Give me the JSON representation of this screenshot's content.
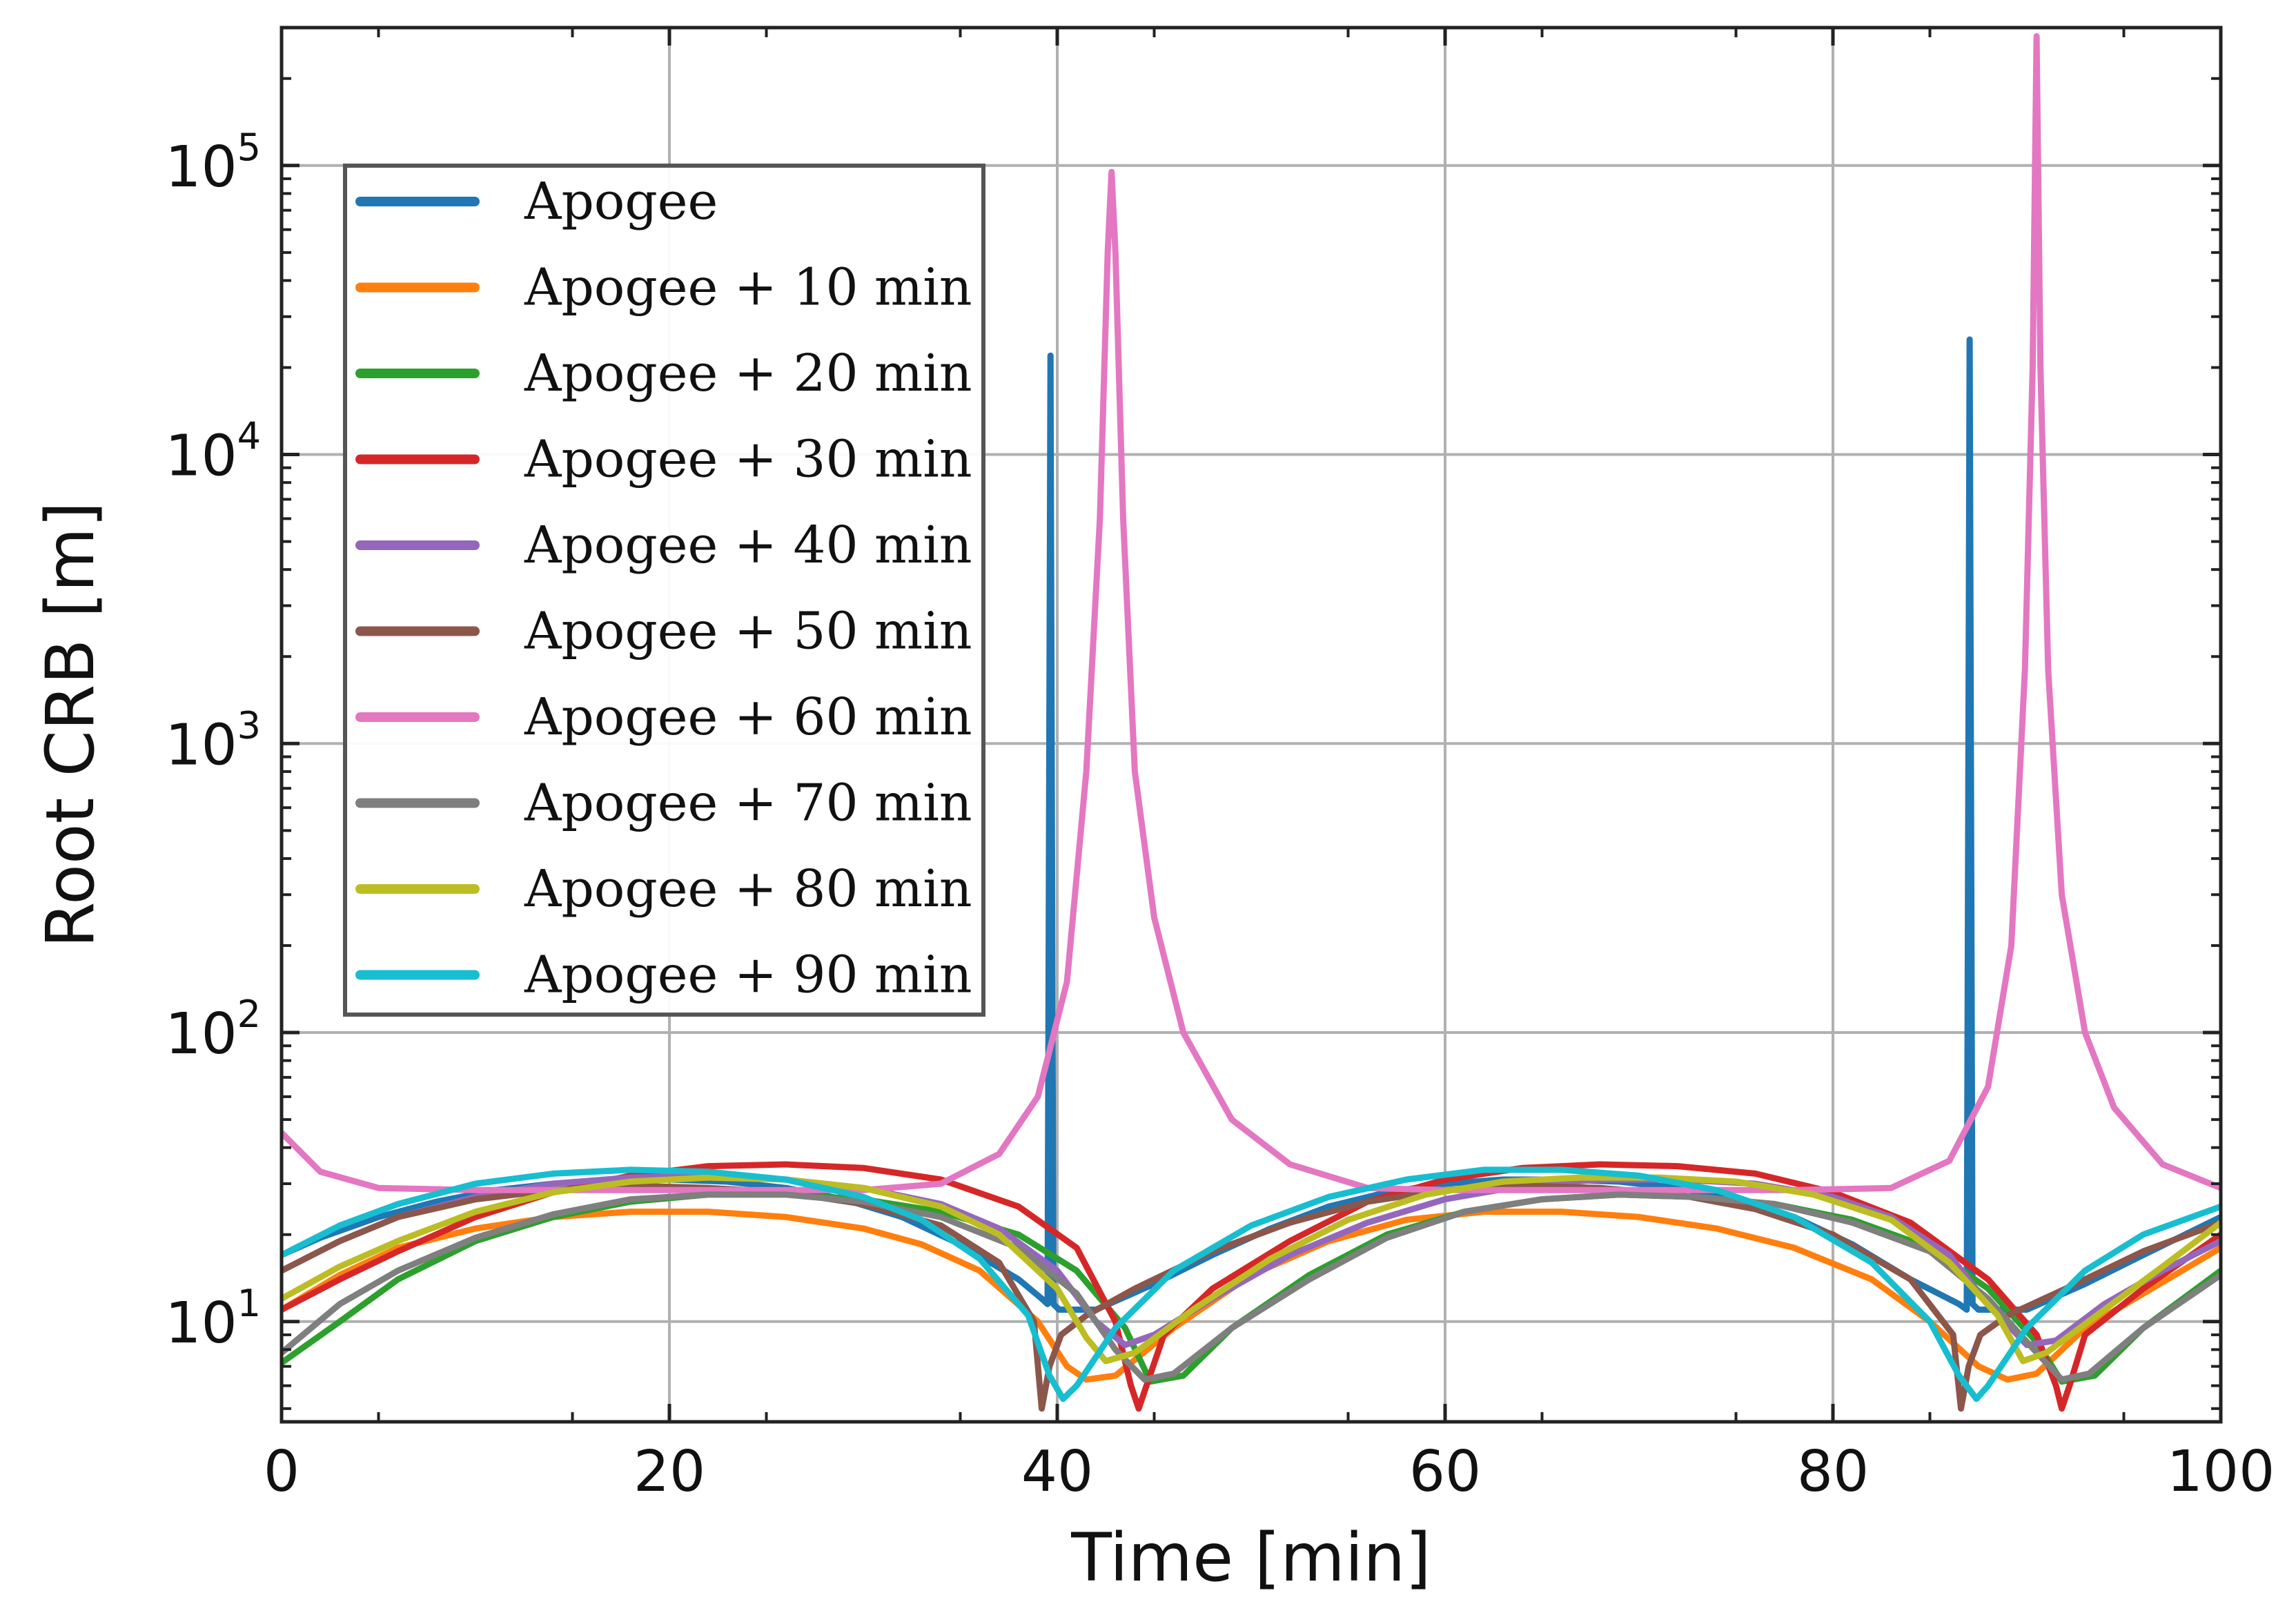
{
  "chart_data": {
    "type": "line",
    "title": "",
    "xlabel": "Time [min]",
    "ylabel": "Root CRB [m]",
    "xlim": [
      0,
      100
    ],
    "ylim": [
      4.5,
      300000
    ],
    "yscale": "log",
    "grid": true,
    "legend_position": "upper-left",
    "x_ticks": [
      0,
      20,
      40,
      60,
      80,
      100
    ],
    "y_ticks": [
      {
        "value": 10,
        "base": "10",
        "exp": "1"
      },
      {
        "value": 100,
        "base": "10",
        "exp": "2"
      },
      {
        "value": 1000,
        "base": "10",
        "exp": "3"
      },
      {
        "value": 10000,
        "base": "10",
        "exp": "4"
      },
      {
        "value": 100000,
        "base": "10",
        "exp": "5"
      }
    ],
    "series": [
      {
        "name": "Apogee",
        "color": "#1f77b4",
        "x": [
          0,
          2,
          5,
          8,
          11,
          14,
          17,
          20,
          23,
          26,
          29,
          32,
          35,
          38,
          39.2,
          39.5,
          39.65,
          39.8,
          40.1,
          42,
          45,
          48,
          51,
          54,
          57,
          60,
          63,
          66,
          69,
          72,
          75,
          78,
          81,
          84,
          86.5,
          86.9,
          87.05,
          87.2,
          87.5,
          90,
          93,
          96,
          100
        ],
        "y": [
          17,
          19.5,
          23,
          26,
          28.5,
          30,
          30.8,
          31,
          30.5,
          29,
          26.5,
          23,
          18.5,
          14,
          12,
          11.5,
          22000,
          11.5,
          11,
          11,
          13.5,
          17,
          21,
          25,
          28,
          30,
          31,
          31,
          30.5,
          29,
          26.5,
          23,
          18.5,
          14,
          11.5,
          11,
          25000,
          11.5,
          11,
          11,
          13.5,
          17,
          23
        ]
      },
      {
        "name": "Apogee + 10 min",
        "color": "#ff7f0e",
        "x": [
          0,
          3,
          6,
          10,
          14,
          18,
          22,
          26,
          30,
          33,
          36,
          39,
          40.5,
          41.5,
          43,
          46,
          50,
          54,
          58,
          62,
          66,
          70,
          74,
          78,
          82,
          85,
          87.5,
          89,
          90.5,
          93,
          96,
          100
        ],
        "y": [
          11,
          14.5,
          18,
          21,
          23,
          24,
          24,
          23,
          21,
          18.5,
          15,
          10,
          7,
          6.3,
          6.5,
          9.5,
          14.5,
          19,
          22.5,
          24,
          24,
          23,
          21,
          18,
          14,
          10,
          7,
          6.3,
          6.6,
          9.5,
          12.5,
          18
        ]
      },
      {
        "name": "Apogee + 20 min",
        "color": "#2ca02c",
        "x": [
          0,
          3,
          6,
          10,
          14,
          18,
          22,
          26,
          30,
          34,
          38,
          41,
          43.5,
          44.8,
          46.5,
          49,
          53,
          57,
          61,
          65,
          69,
          73,
          77,
          81,
          85,
          88,
          90.5,
          91.8,
          93.5,
          96,
          100
        ],
        "y": [
          7.2,
          10,
          14,
          19,
          23,
          26,
          27.5,
          27.5,
          26.5,
          24,
          20,
          15,
          9.5,
          6.2,
          6.5,
          9.5,
          14.5,
          20,
          24,
          26.5,
          27.5,
          27,
          25.5,
          22.5,
          18,
          13,
          8.5,
          6.2,
          6.5,
          9.5,
          15
        ]
      },
      {
        "name": "Apogee + 30 min",
        "color": "#d62728",
        "x": [
          0,
          3,
          6,
          10,
          14,
          18,
          22,
          26,
          30,
          34,
          38,
          41,
          43,
          43.8,
          44.2,
          44.6,
          45.5,
          48,
          52,
          56,
          60,
          64,
          68,
          72,
          76,
          80,
          84,
          88,
          90.5,
          91.5,
          91.8,
          92.2,
          93,
          96,
          100
        ],
        "y": [
          11,
          14,
          17.5,
          23,
          28,
          32,
          34.5,
          35,
          34,
          31,
          25,
          18,
          10,
          6,
          5,
          6,
          9,
          13,
          19,
          26,
          31,
          34,
          35,
          34.5,
          32.5,
          28,
          22,
          14,
          9,
          6,
          5,
          6,
          9,
          13,
          20
        ]
      },
      {
        "name": "Apogee + 40 min",
        "color": "#9467bd",
        "x": [
          0,
          3,
          6,
          10,
          14,
          18,
          22,
          26,
          30,
          34,
          37,
          40,
          42,
          43.5,
          45,
          48,
          52,
          56,
          60,
          64,
          68,
          72,
          76,
          80,
          83,
          86,
          88,
          90,
          91.5,
          94,
          97,
          100
        ],
        "y": [
          15,
          19,
          23,
          27,
          30,
          31.5,
          32,
          31,
          29,
          25.5,
          21,
          15,
          10,
          8.3,
          9,
          12,
          17,
          22,
          26.5,
          29.5,
          31,
          31,
          30,
          27,
          23,
          17,
          11.5,
          8.3,
          8.6,
          11.5,
          15,
          19
        ]
      },
      {
        "name": "Apogee + 50 min",
        "color": "#8c564b",
        "x": [
          0,
          3,
          6,
          10,
          14,
          18,
          22,
          26,
          30,
          34,
          37,
          38.8,
          39.2,
          39.6,
          40.2,
          41.5,
          44,
          48,
          52,
          56,
          60,
          64,
          68,
          72,
          76,
          80,
          84,
          86.2,
          86.6,
          87,
          87.6,
          89,
          92,
          96,
          100
        ],
        "y": [
          15,
          19,
          23,
          26.5,
          28.5,
          29.5,
          29,
          28,
          25.5,
          21.5,
          16,
          10,
          5,
          7,
          9,
          10.5,
          13,
          17.5,
          22,
          26,
          28.5,
          29.5,
          29,
          27.5,
          24.5,
          20,
          14,
          9,
          5,
          7,
          9,
          10.5,
          13,
          17.5,
          22
        ]
      },
      {
        "name": "Apogee + 60 min",
        "color": "#e377c2",
        "x": [
          0,
          2,
          5,
          10,
          15,
          20,
          25,
          30,
          34,
          37,
          39,
          40.5,
          41.5,
          42.2,
          42.6,
          42.8,
          43,
          43.4,
          44,
          45,
          46.5,
          49,
          52,
          56,
          60,
          66,
          72,
          78,
          83,
          86,
          88,
          89.2,
          89.9,
          90.3,
          90.5,
          90.7,
          91.1,
          91.8,
          93,
          94.5,
          97,
          100
        ],
        "y": [
          45,
          33,
          29,
          28.5,
          28.5,
          28.5,
          28.5,
          28.5,
          30,
          38,
          60,
          150,
          800,
          6000,
          50000,
          95000,
          50000,
          6000,
          800,
          250,
          100,
          50,
          35,
          29,
          28.5,
          28.5,
          28.5,
          28.5,
          29,
          36,
          65,
          200,
          1800,
          20000,
          280000,
          20000,
          1800,
          300,
          100,
          55,
          35,
          29
        ]
      },
      {
        "name": "Apogee + 70 min",
        "color": "#7f7f7f",
        "x": [
          0,
          3,
          6,
          10,
          14,
          18,
          22,
          26,
          30,
          34,
          38,
          41,
          43,
          44.5,
          46,
          49,
          53,
          57,
          61,
          65,
          69,
          73,
          77,
          81,
          85,
          88,
          90,
          91.8,
          93.2,
          96,
          100
        ],
        "y": [
          7.8,
          11.5,
          15,
          19.5,
          23.5,
          26.5,
          27.5,
          27.5,
          26,
          23,
          18,
          12.5,
          8,
          6.3,
          6.6,
          9.5,
          14,
          19.5,
          24,
          26.5,
          27.5,
          27,
          25.5,
          22,
          17.5,
          12,
          8.5,
          6.3,
          6.6,
          9.5,
          14.5
        ]
      },
      {
        "name": "Apogee + 80 min",
        "color": "#bcbd22",
        "x": [
          0,
          3,
          6,
          10,
          14,
          18,
          22,
          26,
          30,
          34,
          37,
          40,
          41.5,
          42.5,
          44,
          47,
          51,
          55,
          59,
          63,
          67,
          71,
          75,
          79,
          83,
          86,
          88.5,
          89.8,
          91,
          94,
          97,
          100
        ],
        "y": [
          12,
          15.5,
          19,
          24,
          28,
          30.5,
          31.5,
          31,
          29,
          25,
          20,
          13,
          8.8,
          7.3,
          7.8,
          11,
          16.5,
          22.5,
          27.5,
          30.5,
          31.5,
          31.5,
          30.5,
          27.5,
          22.5,
          16,
          10.5,
          7.3,
          7.8,
          11,
          15.5,
          22
        ]
      },
      {
        "name": "Apogee + 90 min",
        "color": "#17becf",
        "x": [
          0,
          3,
          6,
          10,
          14,
          18,
          22,
          26,
          30,
          33,
          36,
          38.5,
          39.6,
          40.3,
          41,
          43,
          46,
          50,
          54,
          58,
          62,
          66,
          70,
          74,
          78,
          82,
          85,
          86.5,
          87.4,
          88,
          90,
          93,
          96,
          100
        ],
        "y": [
          17,
          21.5,
          25.5,
          30,
          32.5,
          33.5,
          33,
          31,
          27,
          22.5,
          16.5,
          10.5,
          6.5,
          5.4,
          6,
          9.5,
          15,
          21.5,
          27,
          31,
          33.5,
          33.5,
          32,
          28.5,
          23,
          16,
          10,
          6.5,
          5.4,
          6,
          9.5,
          15,
          20,
          25
        ]
      }
    ]
  }
}
